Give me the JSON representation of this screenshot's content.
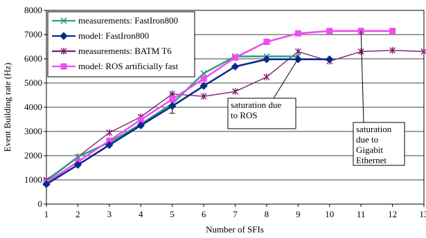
{
  "chart_data": {
    "type": "line",
    "xlabel": "Number of SFIs",
    "ylabel": "Event Building rate (Hz)",
    "xlim": [
      1,
      13
    ],
    "ylim": [
      0,
      8000
    ],
    "x_ticks": [
      "1",
      "2",
      "3",
      "4",
      "5",
      "6",
      "7",
      "8",
      "9",
      "10",
      "11",
      "12",
      "13"
    ],
    "y_ticks": [
      "0",
      "1000",
      "2000",
      "3000",
      "4000",
      "5000",
      "6000",
      "7000",
      "8000"
    ],
    "grid": "horizontal",
    "legend_position": "top-left",
    "series": [
      {
        "name": "measurements: FastIron800",
        "color": "#2e9e86",
        "marker": "x-cross",
        "x": [
          1,
          2,
          3,
          4,
          5,
          6,
          7,
          8,
          9
        ],
        "y": [
          950,
          1950,
          2550,
          3300,
          4150,
          5400,
          6100,
          6100,
          6100
        ]
      },
      {
        "name": "model: FastIron800",
        "color": "#0a2a8c",
        "marker": "diamond",
        "x": [
          1,
          2,
          3,
          4,
          5,
          6,
          7,
          8,
          9,
          10
        ],
        "y": [
          820,
          1620,
          2440,
          3250,
          4050,
          4880,
          5680,
          5980,
          5980,
          5980
        ]
      },
      {
        "name": "measurements: BATM T6",
        "color": "#7a1f6e",
        "marker": "star",
        "x": [
          1,
          2,
          3,
          4,
          5,
          6,
          7,
          8,
          9,
          10,
          11,
          12,
          13
        ],
        "y": [
          1000,
          1950,
          2950,
          3600,
          4550,
          4450,
          4650,
          5250,
          6300,
          5900,
          6300,
          6350,
          6300
        ]
      },
      {
        "name": "model: ROS artificially fast",
        "color": "#f04cf0",
        "marker": "square",
        "x": [
          1,
          2,
          3,
          4,
          5,
          6,
          7,
          8,
          9,
          10,
          11,
          12
        ],
        "y": [
          880,
          1750,
          2620,
          3480,
          4330,
          5180,
          6050,
          6700,
          7050,
          7150,
          7150,
          7150
        ]
      }
    ],
    "annotations": [
      {
        "lines": [
          "saturation due",
          "to ROS"
        ],
        "x": 9,
        "y": 6000
      },
      {
        "lines": [
          "saturation",
          "due to",
          "Gigabit",
          "Ethernet"
        ],
        "x": 11,
        "y": 7150
      }
    ]
  }
}
